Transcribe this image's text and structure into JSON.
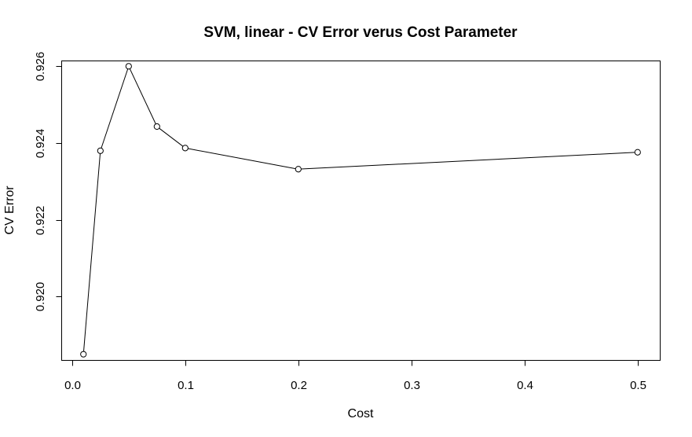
{
  "chart_data": {
    "type": "line",
    "title": "SVM, linear - CV Error verus Cost Parameter",
    "xlabel": "Cost",
    "ylabel": "CV Error",
    "x": [
      0.01,
      0.025,
      0.05,
      0.075,
      0.1,
      0.2,
      0.5
    ],
    "series": [
      {
        "values": [
          0.9185,
          0.9238,
          0.926,
          0.92443,
          0.92387,
          0.92332,
          0.92376
        ]
      }
    ],
    "xlim": [
      -0.0096,
      0.5196
    ],
    "ylim": [
      0.91835,
      0.92615
    ],
    "xticks": [
      0.0,
      0.1,
      0.2,
      0.3,
      0.4,
      0.5
    ],
    "xtick_labels": [
      "0.0",
      "0.1",
      "0.2",
      "0.3",
      "0.4",
      "0.5"
    ],
    "yticks": [
      0.92,
      0.922,
      0.924,
      0.926
    ],
    "ytick_labels": [
      "0.920",
      "0.922",
      "0.924",
      "0.926"
    ],
    "grid": false,
    "markers": "open-circle"
  }
}
